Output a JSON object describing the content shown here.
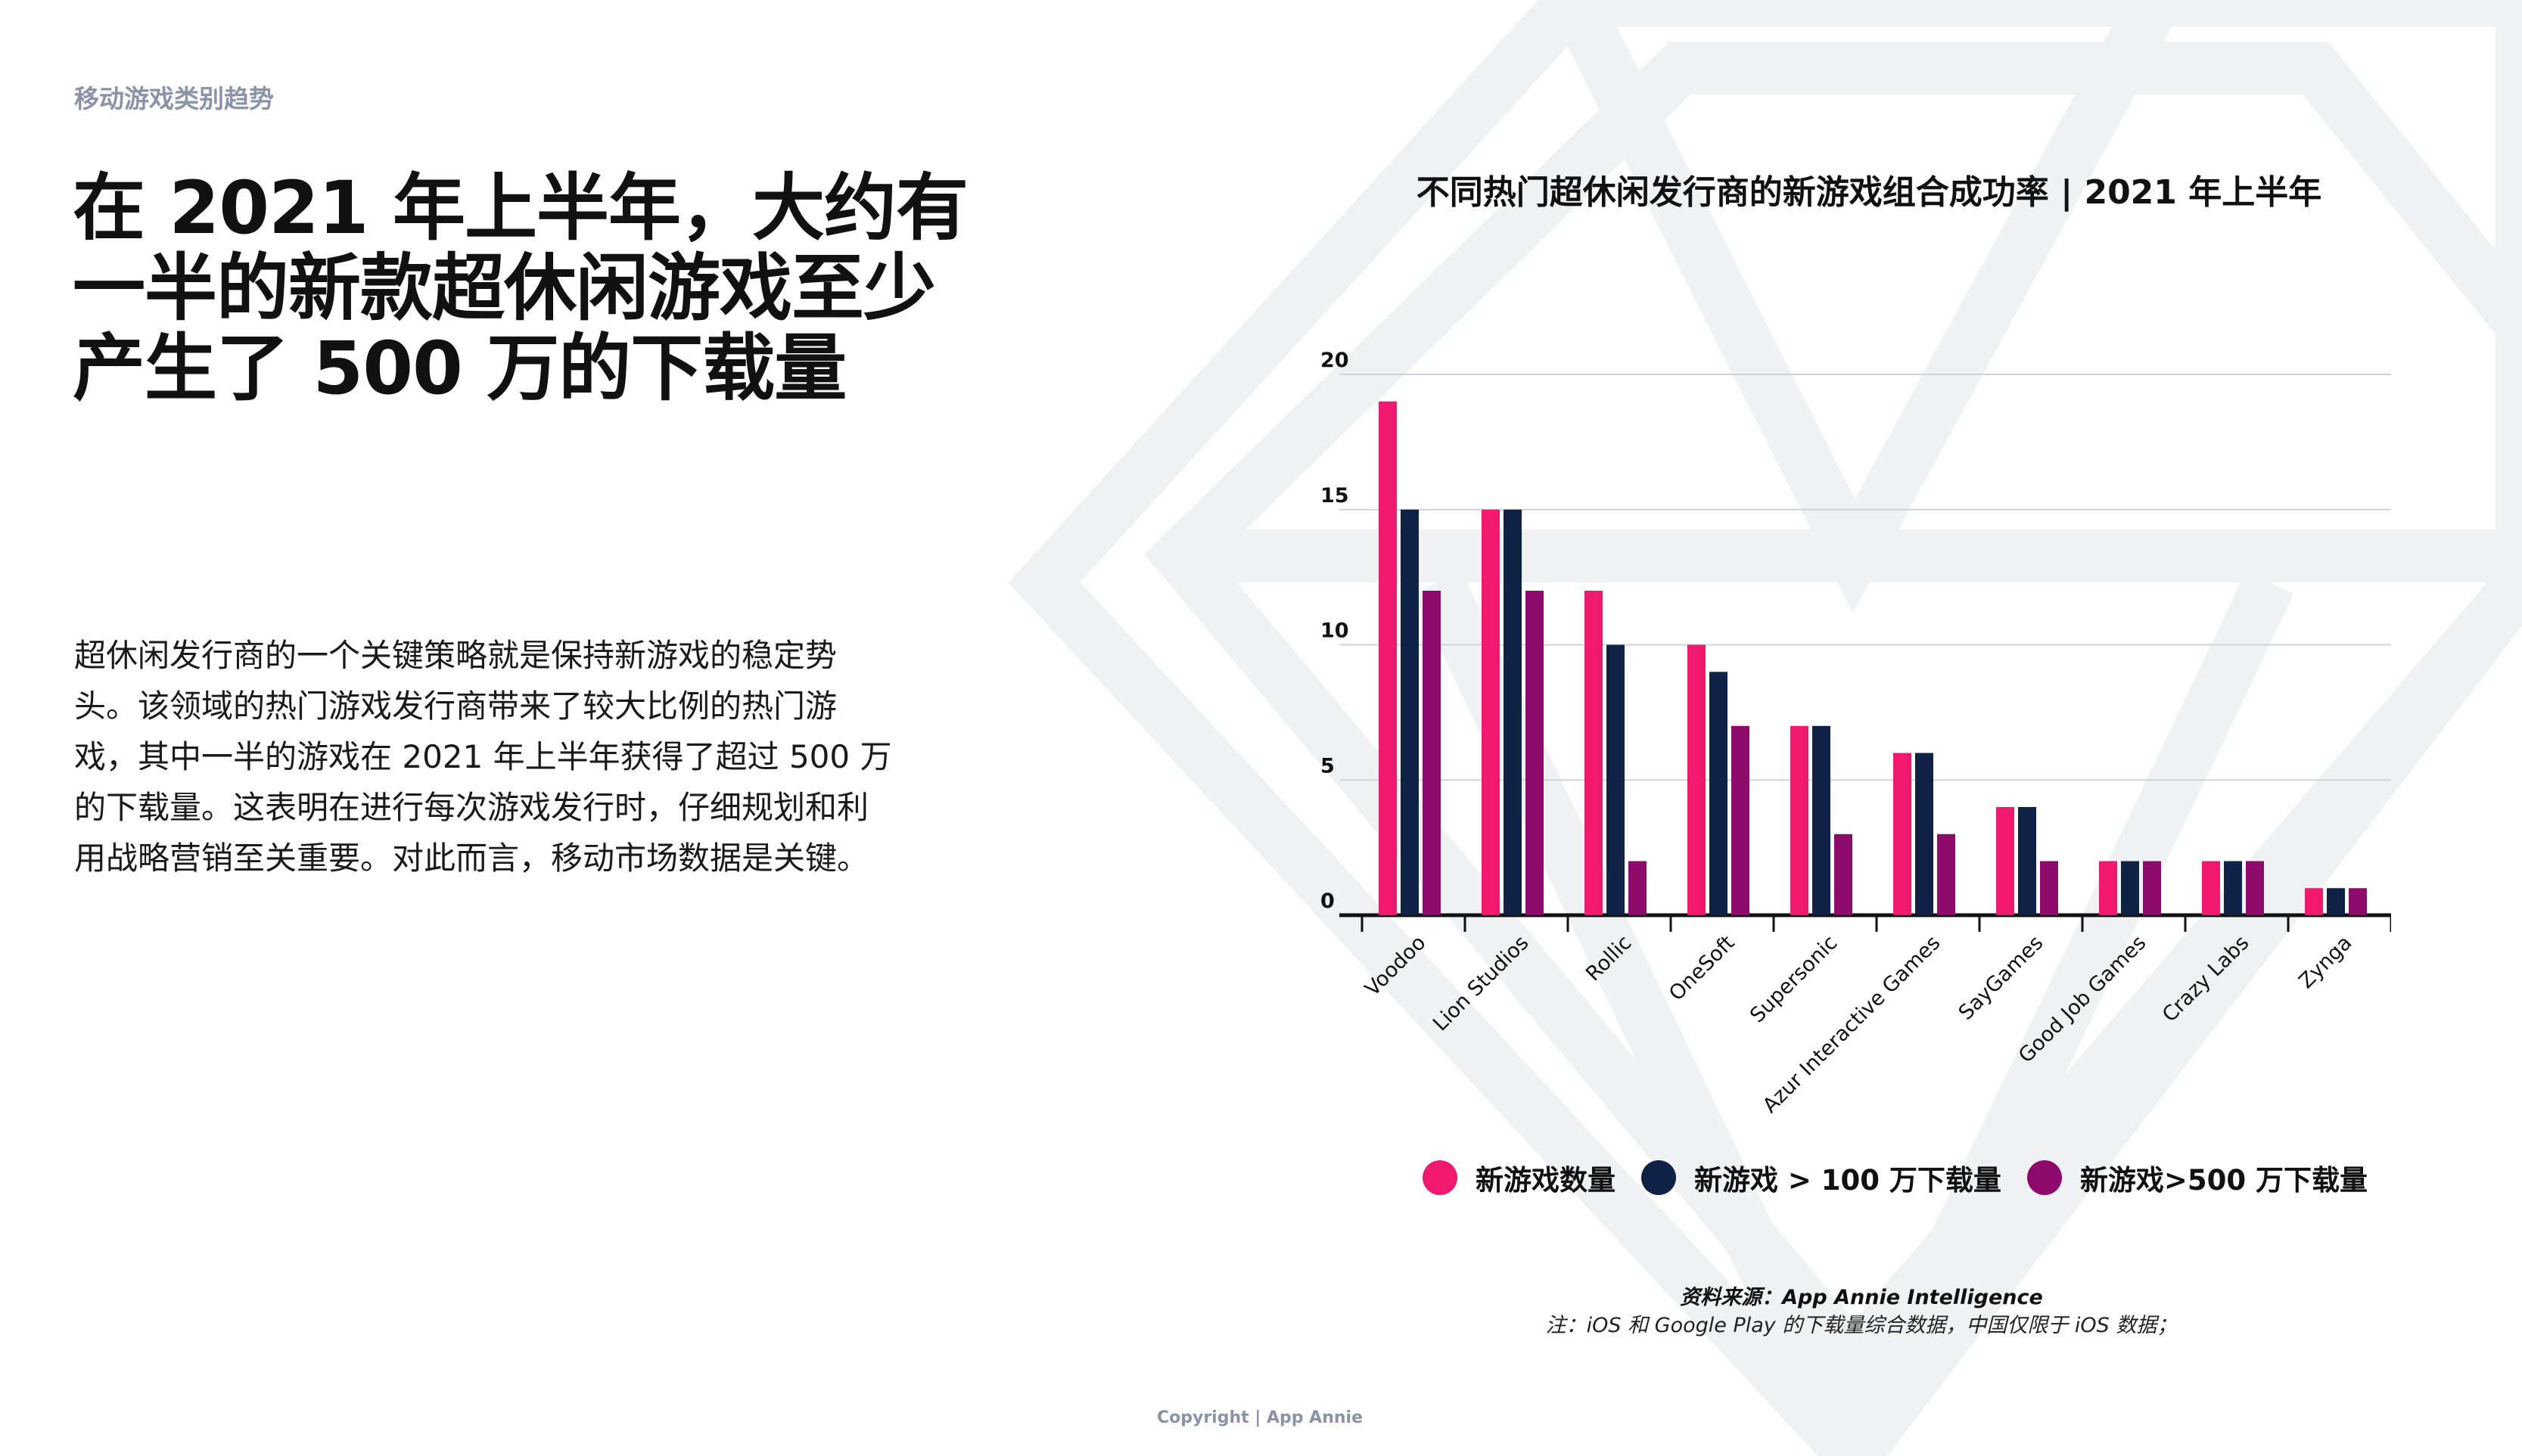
{
  "header": {
    "section_label": "移动游戏类别趋势"
  },
  "headline": {
    "line1": "在 2021 年上半年，大约有",
    "line2": "一半的新款超休闲游戏至少",
    "line3": "产生了 500 万的下载量"
  },
  "body": {
    "line1": "超休闲发行商的一个关键策略就是保持新游戏的稳定势",
    "line2": "头。该领域的热门游戏发行商带来了较大比例的热门游",
    "line3": "戏，其中一半的游戏在 2021 年上半年获得了超过 500 万",
    "line4": "的下载量。这表明在进行每次游戏发行时，仔细规划和利",
    "line5": "用战略营销至关重要。对此而言，移动市场数据是关键。"
  },
  "chart_data": {
    "type": "bar",
    "title": "不同热门超休闲发行商的新游戏组合成功率 | 2021 年上半年",
    "categories": [
      "Voodoo",
      "Lion Studios",
      "Rollic",
      "OneSoft",
      "Supersonic",
      "Azur Interactive Games",
      "SayGames",
      "Good Job Games",
      "Crazy Labs",
      "Zynga"
    ],
    "series": [
      {
        "name": "新游戏数量",
        "color": "#f0196e",
        "values": [
          19,
          15,
          12,
          10,
          7,
          6,
          4,
          2,
          2,
          1
        ]
      },
      {
        "name": "新游戏 > 100 万下载量",
        "color": "#102347",
        "values": [
          15,
          15,
          10,
          9,
          7,
          6,
          4,
          2,
          2,
          1
        ]
      },
      {
        "name": "新游戏>500 万下载量",
        "color": "#8e0a6a",
        "values": [
          12,
          12,
          2,
          7,
          3,
          3,
          2,
          2,
          2,
          1
        ]
      }
    ],
    "yticks": [
      "0",
      "5",
      "10",
      "15",
      "20"
    ],
    "ylim": [
      0,
      20
    ],
    "grid": true,
    "legend": "bottom"
  },
  "footer": {
    "source": "资料来源：App Annie Intelligence",
    "note": "注：iOS 和 Google Play 的下载量综合数据，中国仅限于 iOS 数据；",
    "copyright": "Copyright | App Annie"
  }
}
